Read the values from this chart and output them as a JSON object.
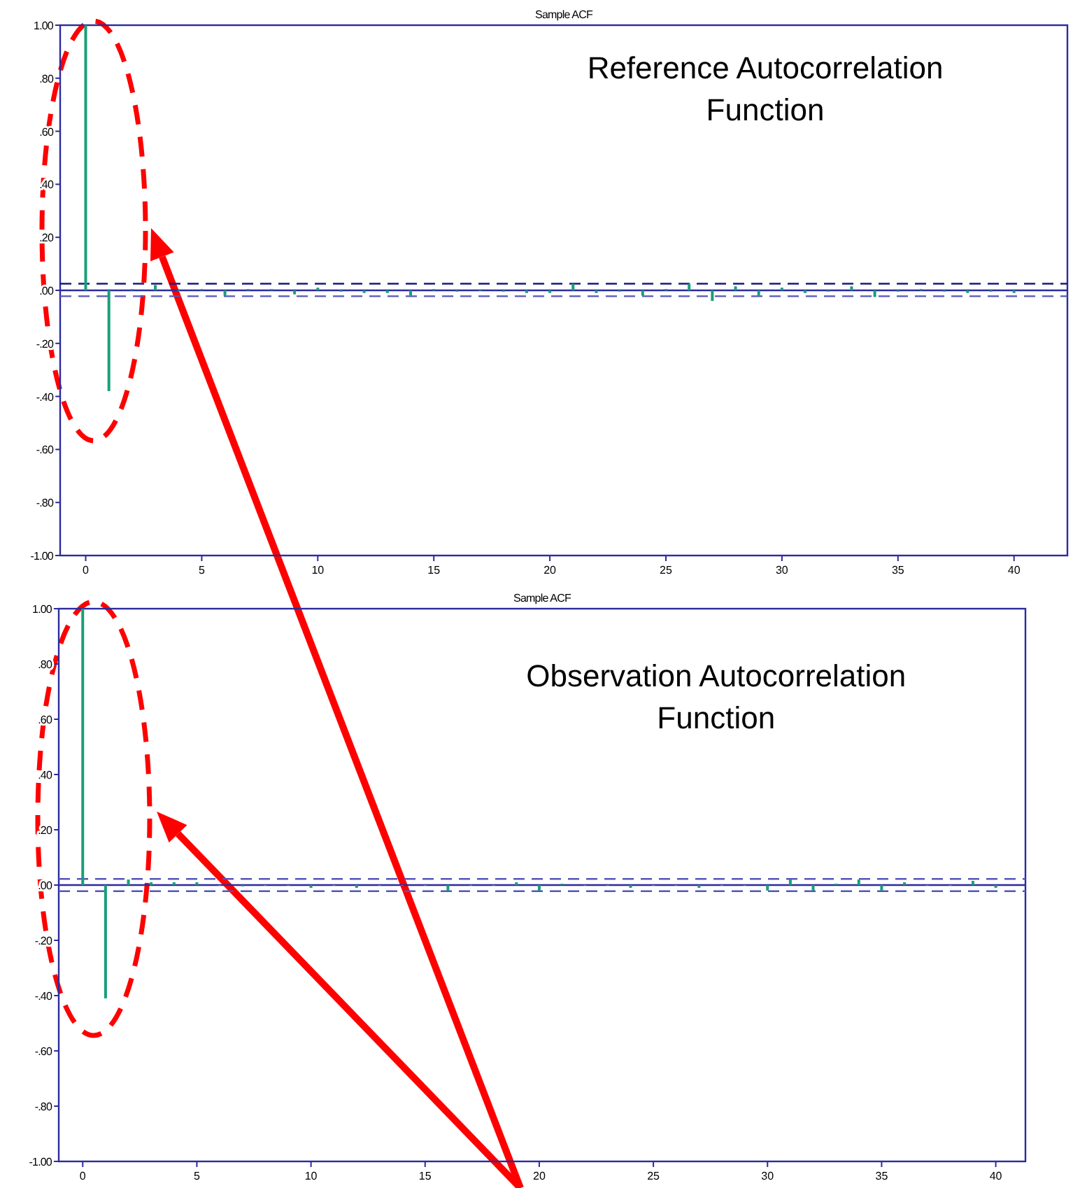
{
  "chart_data": [
    {
      "type": "bar",
      "title": "Sample ACF",
      "annotations": [
        "Reference  Autocorrelation Function"
      ],
      "x": [
        0,
        1,
        2,
        3,
        4,
        5,
        6,
        7,
        8,
        9,
        10,
        11,
        12,
        13,
        14,
        15,
        16,
        17,
        18,
        19,
        20,
        21,
        22,
        23,
        24,
        25,
        26,
        27,
        28,
        29,
        30,
        31,
        32,
        33,
        34,
        35,
        36,
        37,
        38,
        39,
        40
      ],
      "values": [
        1,
        -0.38,
        0.005,
        0.02,
        0,
        0.005,
        -0.02,
        0.005,
        0.005,
        -0.015,
        0.01,
        -0.005,
        -0.01,
        -0.01,
        -0.02,
        0.005,
        -0.005,
        0,
        -0.005,
        -0.01,
        -0.01,
        0.025,
        -0.01,
        -0.005,
        -0.02,
        0.005,
        0.025,
        -0.04,
        0.015,
        -0.02,
        0.01,
        -0.01,
        -0.005,
        0.015,
        -0.025,
        -0.005,
        0.005,
        -0.005,
        -0.01,
        -0.005,
        -0.01
      ],
      "color": "#1a9e7a",
      "xlim": [
        -1.1,
        42.3
      ],
      "ylim": [
        -1,
        1
      ],
      "xticks": [
        0,
        5,
        10,
        15,
        20,
        25,
        30,
        35,
        40
      ],
      "yticks": [
        {
          "value": -1,
          "label": "-1.00"
        },
        {
          "value": -0.8,
          "label": "-.80"
        },
        {
          "value": -0.6,
          "label": "-.60"
        },
        {
          "value": -0.4,
          "label": "-.40"
        },
        {
          "value": -0.2,
          "label": "-.20"
        },
        {
          "value": 0,
          "label": ".00"
        },
        {
          "value": 0.2,
          "label": ".20"
        },
        {
          "value": 0.4,
          "label": ".40"
        },
        {
          "value": 0.6,
          "label": ".60"
        },
        {
          "value": 0.8,
          "label": ".80"
        },
        {
          "value": 1,
          "label": "1.00"
        }
      ],
      "ref_lines": [
        {
          "axis": "y",
          "value": 0,
          "color": "#2b2b9e",
          "line_style": "solid"
        },
        {
          "axis": "y",
          "value": 0.025,
          "color": "#1a1a80",
          "line_style": "dashed"
        },
        {
          "axis": "y",
          "value": -0.022,
          "color": "#5555bb",
          "line_style": "dashed"
        }
      ]
    },
    {
      "type": "bar",
      "title": "Sample ACF",
      "annotations": [
        "Observation Autocorrelation Function"
      ],
      "x": [
        0,
        1,
        2,
        3,
        4,
        5,
        6,
        7,
        8,
        9,
        10,
        11,
        12,
        13,
        14,
        15,
        16,
        17,
        18,
        19,
        20,
        21,
        22,
        23,
        24,
        25,
        26,
        27,
        28,
        29,
        30,
        31,
        32,
        33,
        34,
        35,
        36,
        37,
        38,
        39,
        40
      ],
      "values": [
        1,
        -0.41,
        0.02,
        0.01,
        0.01,
        0.01,
        0,
        -0.005,
        0,
        0,
        -0.01,
        0,
        -0.01,
        0,
        0,
        0,
        -0.02,
        0,
        0,
        0.01,
        -0.02,
        0.005,
        0,
        0,
        -0.01,
        0,
        0,
        -0.01,
        0,
        0,
        -0.02,
        0.02,
        -0.02,
        0.005,
        0.02,
        -0.02,
        0.01,
        0,
        0,
        0.015,
        -0.01
      ],
      "color": "#1a9e7a",
      "xlim": [
        -1.05,
        41.3
      ],
      "ylim": [
        -1,
        1
      ],
      "xticks": [
        0,
        5,
        10,
        15,
        20,
        25,
        30,
        35,
        40
      ],
      "yticks": [
        {
          "value": -1,
          "label": "-1.00"
        },
        {
          "value": -0.8,
          "label": "-.80"
        },
        {
          "value": -0.6,
          "label": "-.60"
        },
        {
          "value": -0.4,
          "label": "-.40"
        },
        {
          "value": -0.2,
          "label": "-.20"
        },
        {
          "value": 0,
          "label": ".00"
        },
        {
          "value": 0.2,
          "label": ".20"
        },
        {
          "value": 0.4,
          "label": ".40"
        },
        {
          "value": 0.6,
          "label": ".60"
        },
        {
          "value": 0.8,
          "label": ".80"
        },
        {
          "value": 1,
          "label": "1.00"
        }
      ],
      "ref_lines": [
        {
          "axis": "y",
          "value": 0,
          "color": "#2b2b9e",
          "line_style": "solid"
        },
        {
          "axis": "y",
          "value": 0.022,
          "color": "#5555bb",
          "line_style": "dashed"
        },
        {
          "axis": "y",
          "value": -0.022,
          "color": "#5555bb",
          "line_style": "dashed"
        }
      ]
    }
  ]
}
